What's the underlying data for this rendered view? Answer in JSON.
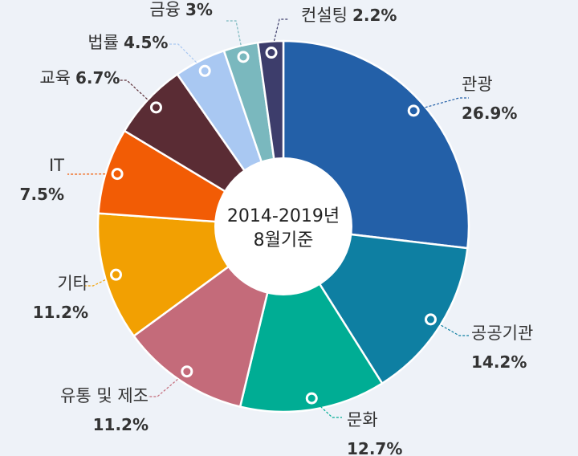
{
  "chart_data": {
    "type": "pie",
    "center_label": [
      "2014-2019년",
      "8월기준"
    ],
    "slices": [
      {
        "label": "관광",
        "value": 26.9,
        "value_text": "26.9%",
        "color": "#2360a8"
      },
      {
        "label": "공공기관",
        "value": 14.2,
        "value_text": "14.2%",
        "color": "#0e7fa2"
      },
      {
        "label": "문화",
        "value": 12.7,
        "value_text": "12.7%",
        "color": "#00ad94"
      },
      {
        "label": "유통 및 제조",
        "value": 11.2,
        "value_text": "11.2%",
        "color": "#c46b7a"
      },
      {
        "label": "기타",
        "value": 11.2,
        "value_text": "11.2%",
        "color": "#f2a002"
      },
      {
        "label": "IT",
        "value": 7.5,
        "value_text": "7.5%",
        "color": "#f25c05"
      },
      {
        "label": "교육",
        "value": 6.7,
        "value_text": "6.7%",
        "color": "#5a2c34"
      },
      {
        "label": "법률",
        "value": 4.5,
        "value_text": "4.5%",
        "color": "#a9c8f2"
      },
      {
        "label": "금융",
        "value": 3,
        "value_text": "3%",
        "color": "#7ab8be"
      },
      {
        "label": "컨설팅",
        "value": 2.2,
        "value_text": "2.2%",
        "color": "#3d3d6b"
      }
    ]
  }
}
